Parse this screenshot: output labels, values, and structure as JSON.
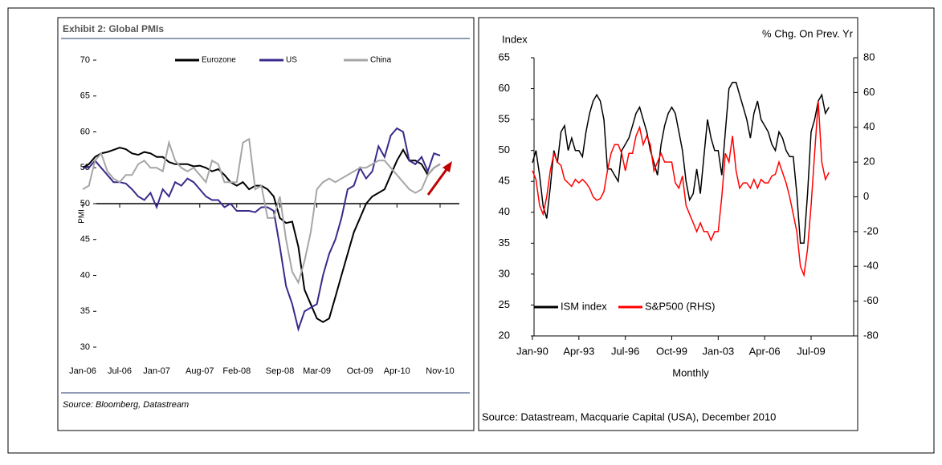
{
  "chart_data": [
    {
      "type": "line",
      "title": "Exhibit 2: Global PMIs",
      "y_label": "PMI",
      "source": "Source: Bloomberg, Datastream",
      "categories": [
        "Jan-06",
        null,
        null,
        null,
        null,
        null,
        "Jul-06",
        null,
        null,
        null,
        null,
        null,
        "Jan-07",
        null,
        null,
        null,
        null,
        null,
        null,
        "Aug-07",
        null,
        null,
        null,
        null,
        null,
        "Feb-08",
        null,
        null,
        null,
        null,
        null,
        null,
        "Sep-08",
        null,
        null,
        null,
        null,
        null,
        "Mar-09",
        null,
        null,
        null,
        null,
        null,
        null,
        "Oct-09",
        null,
        null,
        null,
        null,
        null,
        "Apr-10",
        null,
        null,
        null,
        null,
        null,
        null,
        "Nov-10"
      ],
      "series": [
        {
          "name": "Eurozone",
          "color": "#000000",
          "values": [
            55,
            55.5,
            56.5,
            57,
            57.2,
            57.5,
            57.8,
            57.6,
            57,
            56.8,
            57.2,
            57,
            56.5,
            56.5,
            55.8,
            55.5,
            55.5,
            55.5,
            55.2,
            55.3,
            55,
            54.5,
            54.8,
            54,
            53,
            52.5,
            53,
            52,
            52.5,
            52.5,
            52,
            51,
            48,
            47.3,
            47.5,
            44,
            38,
            36,
            34,
            33.5,
            34,
            37,
            40,
            43,
            46,
            48,
            50,
            51,
            51.5,
            52,
            54,
            56,
            57.5,
            56,
            56,
            55.5,
            54,
            55,
            55.5
          ]
        },
        {
          "name": "US",
          "color": "#3a2a8c",
          "values": [
            55,
            55,
            56,
            55,
            54,
            53,
            53,
            52.8,
            52,
            51,
            50.5,
            51.5,
            49.5,
            52,
            51,
            53,
            52.5,
            53.5,
            53,
            52,
            51,
            50.5,
            50.5,
            49.5,
            50,
            49,
            49,
            49,
            48.8,
            49.5,
            49.5,
            49,
            44,
            38.5,
            36,
            32.5,
            35,
            35.5,
            36,
            40,
            43,
            45,
            48,
            52,
            52.5,
            55,
            53.5,
            54.5,
            58,
            56.5,
            59.5,
            60.5,
            60,
            56,
            55.5,
            56.5,
            54.5,
            57,
            56.7
          ]
        },
        {
          "name": "China",
          "color": "#a6a6a6",
          "values": [
            52,
            52.5,
            56,
            57,
            54.5,
            53.5,
            53,
            54,
            54,
            55.5,
            56,
            55,
            55,
            54.5,
            58.5,
            56,
            55,
            54.5,
            55,
            54,
            53,
            56,
            55.5,
            53,
            53,
            53,
            58.5,
            59,
            52,
            52.5,
            48,
            48,
            51,
            45,
            40.5,
            39,
            42,
            46,
            52,
            53,
            53.5,
            53,
            53.5,
            54,
            54.5,
            55,
            55,
            55.5,
            56,
            56,
            55,
            54,
            53,
            52,
            51.5,
            52,
            54,
            55,
            55.5
          ]
        }
      ],
      "ylim": [
        30,
        70
      ],
      "yticks": [
        30,
        35,
        40,
        45,
        50,
        55,
        60,
        65,
        70
      ],
      "hline": 50,
      "legend": "top"
    },
    {
      "type": "line",
      "y_label": "Index",
      "y2_label": "% Chg. On Prev. Yr",
      "x_label": "Monthly",
      "source": "Source: Datastream, Macquarie Capital (USA), December 2010",
      "categories": [
        "Jan-90",
        null,
        null,
        null,
        null,
        null,
        null,
        null,
        null,
        null,
        null,
        null,
        null,
        "Apr-93",
        null,
        null,
        null,
        null,
        null,
        null,
        null,
        null,
        null,
        null,
        null,
        null,
        "Jul-96",
        null,
        null,
        null,
        null,
        null,
        null,
        null,
        null,
        null,
        null,
        null,
        null,
        "Oct-99",
        null,
        null,
        null,
        null,
        null,
        null,
        null,
        null,
        null,
        null,
        null,
        null,
        "Jan-03",
        null,
        null,
        null,
        null,
        null,
        null,
        null,
        null,
        null,
        null,
        null,
        null,
        "Apr-06",
        null,
        null,
        null,
        null,
        null,
        null,
        null,
        null,
        null,
        null,
        null,
        null,
        "Jul-09",
        null,
        null,
        null,
        null,
        null
      ],
      "series": [
        {
          "name": "ISM index",
          "color": "#000000",
          "values": [
            48,
            50,
            46,
            41,
            39,
            44,
            50,
            48,
            53,
            54,
            50,
            52,
            50,
            50,
            49,
            53,
            56,
            58,
            59,
            58,
            55,
            47,
            47,
            46,
            45,
            50,
            51,
            52,
            54,
            56,
            57,
            55,
            53,
            50,
            48,
            46,
            51,
            54,
            56,
            57,
            56,
            53,
            50,
            45,
            42,
            43,
            47,
            43,
            49,
            55,
            52,
            50,
            50,
            46,
            53,
            60,
            61,
            61,
            59,
            57,
            55,
            52,
            56,
            58,
            55,
            54,
            53,
            51,
            50,
            53,
            52,
            50,
            49,
            49,
            43,
            35,
            35,
            43,
            53,
            55,
            58,
            59,
            56,
            57
          ]
        },
        {
          "name": "S&P500 (RHS)",
          "color": "#ff0000",
          "axis": "y2",
          "values": [
            15,
            10,
            -5,
            -10,
            0,
            15,
            25,
            20,
            18,
            10,
            8,
            6,
            10,
            8,
            10,
            8,
            5,
            0,
            -2,
            -1,
            3,
            15,
            25,
            30,
            30,
            25,
            15,
            25,
            25,
            35,
            40,
            30,
            35,
            30,
            15,
            20,
            25,
            20,
            20,
            20,
            8,
            5,
            12,
            -5,
            -10,
            -15,
            -20,
            -15,
            -20,
            -20,
            -25,
            -20,
            -20,
            0,
            25,
            20,
            35,
            15,
            5,
            8,
            8,
            5,
            10,
            5,
            10,
            8,
            8,
            12,
            13,
            20,
            14,
            8,
            0,
            -10,
            -20,
            -40,
            -45,
            -30,
            -5,
            25,
            55,
            20,
            10,
            14
          ]
        }
      ],
      "ylim": [
        20,
        65
      ],
      "yticks": [
        20,
        25,
        30,
        35,
        40,
        45,
        50,
        55,
        60,
        65
      ],
      "y2lim": [
        -80,
        80
      ],
      "y2ticks": [
        -80,
        -60,
        -40,
        -20,
        0,
        20,
        40,
        60,
        80
      ],
      "legend": "bottom left"
    }
  ]
}
